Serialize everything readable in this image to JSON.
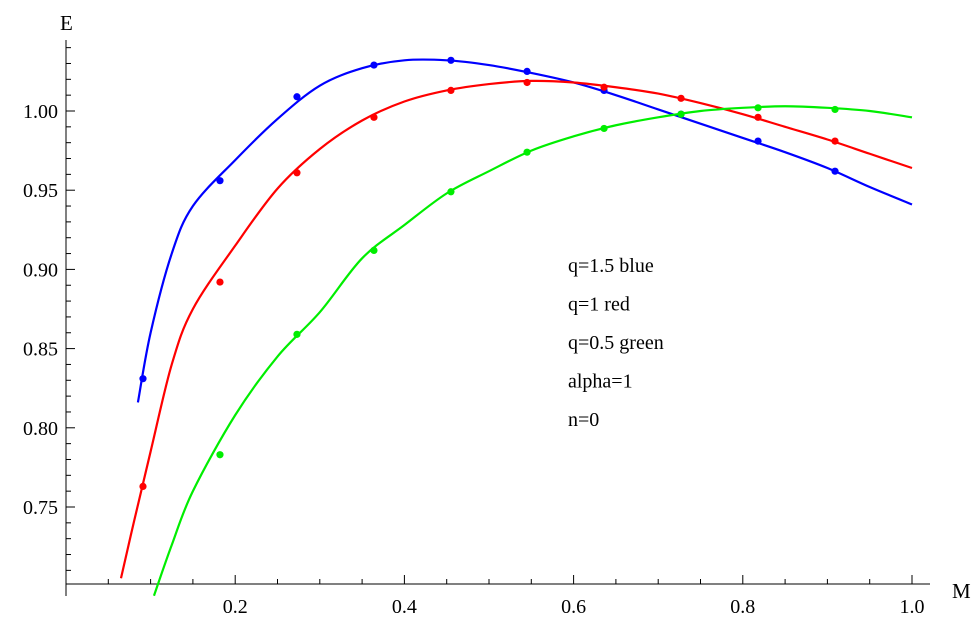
{
  "chart_data": {
    "type": "line",
    "xlabel": "M",
    "ylabel": "E",
    "xlim": [
      0.0,
      1.0
    ],
    "ylim": [
      0.7,
      1.04
    ],
    "x_ticks": [
      0.2,
      0.4,
      0.6,
      0.8,
      1.0
    ],
    "x_tick_labels": [
      "0.2",
      "0.4",
      "0.6",
      "0.8",
      "1.0"
    ],
    "x_minor_step": 0.05,
    "y_ticks": [
      0.75,
      0.8,
      0.85,
      0.9,
      0.95,
      1.0
    ],
    "y_tick_labels": [
      "0.75",
      "0.80",
      "0.85",
      "0.90",
      "0.95",
      "1.00"
    ],
    "y_minor_step": 0.01,
    "grid": false,
    "legend": "none",
    "annotations": [
      "q=1.5 blue",
      "q=1 red",
      "q=0.5 green",
      "alpha=1",
      "n=0"
    ],
    "series": [
      {
        "color": "#0000ff",
        "curve": [
          [
            0.085,
            0.816
          ],
          [
            0.1,
            0.86
          ],
          [
            0.125,
            0.91
          ],
          [
            0.15,
            0.94
          ],
          [
            0.2,
            0.969
          ],
          [
            0.25,
            0.995
          ],
          [
            0.3,
            1.016
          ],
          [
            0.35,
            1.027
          ],
          [
            0.4,
            1.032
          ],
          [
            0.45,
            1.032
          ],
          [
            0.5,
            1.029
          ],
          [
            0.55,
            1.024
          ],
          [
            0.6,
            1.018
          ],
          [
            0.65,
            1.01
          ],
          [
            0.7,
            1.001
          ],
          [
            0.75,
            0.992
          ],
          [
            0.8,
            0.983
          ],
          [
            0.85,
            0.974
          ],
          [
            0.9,
            0.964
          ],
          [
            0.95,
            0.952
          ],
          [
            1.0,
            0.941
          ]
        ],
        "points": [
          [
            0.091,
            0.831
          ],
          [
            0.182,
            0.956
          ],
          [
            0.273,
            1.009
          ],
          [
            0.364,
            1.029
          ],
          [
            0.455,
            1.032
          ],
          [
            0.545,
            1.025
          ],
          [
            0.636,
            1.013
          ],
          [
            0.727,
            0.998
          ],
          [
            0.818,
            0.981
          ],
          [
            0.909,
            0.962
          ]
        ]
      },
      {
        "color": "#ff0000",
        "curve": [
          [
            0.065,
            0.705
          ],
          [
            0.08,
            0.74
          ],
          [
            0.1,
            0.785
          ],
          [
            0.125,
            0.84
          ],
          [
            0.15,
            0.875
          ],
          [
            0.2,
            0.915
          ],
          [
            0.25,
            0.951
          ],
          [
            0.3,
            0.976
          ],
          [
            0.35,
            0.994
          ],
          [
            0.4,
            1.006
          ],
          [
            0.45,
            1.013
          ],
          [
            0.5,
            1.017
          ],
          [
            0.55,
            1.019
          ],
          [
            0.6,
            1.018
          ],
          [
            0.65,
            1.015
          ],
          [
            0.7,
            1.011
          ],
          [
            0.75,
            1.005
          ],
          [
            0.8,
            0.998
          ],
          [
            0.85,
            0.99
          ],
          [
            0.9,
            0.982
          ],
          [
            0.95,
            0.973
          ],
          [
            1.0,
            0.964
          ]
        ],
        "points": [
          [
            0.091,
            0.763
          ],
          [
            0.182,
            0.892
          ],
          [
            0.273,
            0.961
          ],
          [
            0.364,
            0.996
          ],
          [
            0.455,
            1.013
          ],
          [
            0.545,
            1.018
          ],
          [
            0.636,
            1.015
          ],
          [
            0.727,
            1.008
          ],
          [
            0.818,
            0.996
          ],
          [
            0.909,
            0.981
          ]
        ]
      },
      {
        "color": "#00ee00",
        "curve": [
          [
            0.104,
            0.694
          ],
          [
            0.125,
            0.726
          ],
          [
            0.15,
            0.76
          ],
          [
            0.2,
            0.808
          ],
          [
            0.25,
            0.845
          ],
          [
            0.3,
            0.873
          ],
          [
            0.35,
            0.907
          ],
          [
            0.4,
            0.928
          ],
          [
            0.45,
            0.948
          ],
          [
            0.5,
            0.962
          ],
          [
            0.55,
            0.975
          ],
          [
            0.6,
            0.984
          ],
          [
            0.65,
            0.991
          ],
          [
            0.7,
            0.996
          ],
          [
            0.75,
            1.0
          ],
          [
            0.8,
            1.002
          ],
          [
            0.85,
            1.003
          ],
          [
            0.9,
            1.002
          ],
          [
            0.95,
            1.0
          ],
          [
            1.0,
            0.996
          ]
        ],
        "points": [
          [
            0.182,
            0.783
          ],
          [
            0.273,
            0.859
          ],
          [
            0.364,
            0.912
          ],
          [
            0.455,
            0.949
          ],
          [
            0.545,
            0.974
          ],
          [
            0.636,
            0.989
          ],
          [
            0.727,
            0.998
          ],
          [
            0.818,
            1.002
          ],
          [
            0.909,
            1.001
          ]
        ]
      }
    ]
  }
}
